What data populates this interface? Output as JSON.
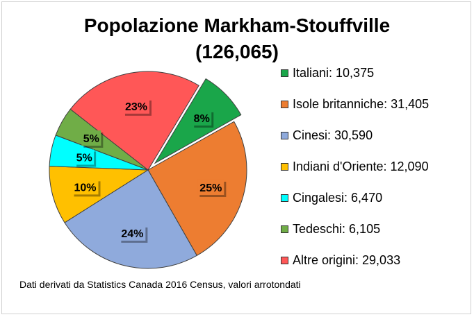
{
  "chart_data": {
    "type": "pie",
    "title_line1": "Popolazione Markham-Stouffville",
    "title_line2": "(126,065)",
    "slices": [
      {
        "label": "Italiani: 10,375",
        "value": 10375,
        "pct_label": "8%",
        "color": "#1aa64a",
        "exploded": true
      },
      {
        "label": "Isole britanniche: 31,405",
        "value": 31405,
        "pct_label": "25%",
        "color": "#ed7d31",
        "exploded": false
      },
      {
        "label": "Cinesi: 30,590",
        "value": 30590,
        "pct_label": "24%",
        "color": "#8faadc",
        "exploded": false
      },
      {
        "label": "Indiani d'Oriente: 12,090",
        "value": 12090,
        "pct_label": "10%",
        "color": "#ffc000",
        "exploded": false
      },
      {
        "label": "Cingalesi: 6,470",
        "value": 6470,
        "pct_label": "5%",
        "color": "#00ffff",
        "exploded": false
      },
      {
        "label": "Tedeschi: 6,105",
        "value": 6105,
        "pct_label": "5%",
        "color": "#70ad47",
        "exploded": false
      },
      {
        "label": "Altre origini: 29,033",
        "value": 29033,
        "pct_label": "23%",
        "color": "#ff5757",
        "exploded": false
      }
    ],
    "legend_position": "right",
    "footnote": "Dati derivati da Statistics Canada 2016 Census, valori arrotondati"
  }
}
